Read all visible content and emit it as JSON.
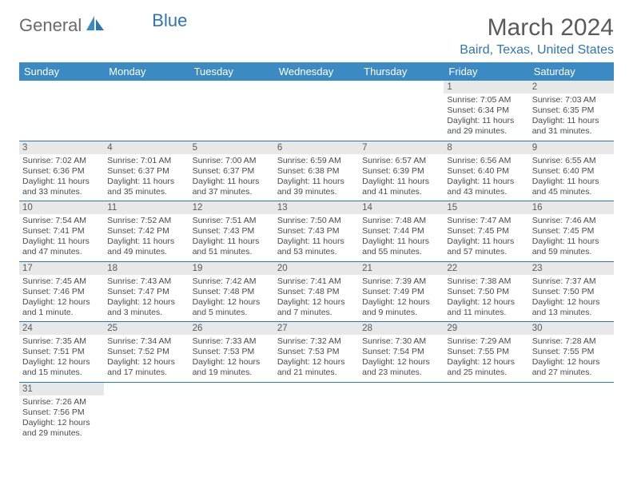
{
  "logo": {
    "text1": "General",
    "text2": "Blue"
  },
  "title": "March 2024",
  "location": "Baird, Texas, United States",
  "colors": {
    "header_bg": "#3b8ac4",
    "accent": "#2e75b6",
    "day_bg": "#e8e8e8",
    "text": "#404040",
    "title_text": "#5a5a5a"
  },
  "days_of_week": [
    "Sunday",
    "Monday",
    "Tuesday",
    "Wednesday",
    "Thursday",
    "Friday",
    "Saturday"
  ],
  "weeks": [
    [
      null,
      null,
      null,
      null,
      null,
      {
        "n": "1",
        "sr": "Sunrise: 7:05 AM",
        "ss": "Sunset: 6:34 PM",
        "d1": "Daylight: 11 hours",
        "d2": "and 29 minutes."
      },
      {
        "n": "2",
        "sr": "Sunrise: 7:03 AM",
        "ss": "Sunset: 6:35 PM",
        "d1": "Daylight: 11 hours",
        "d2": "and 31 minutes."
      }
    ],
    [
      {
        "n": "3",
        "sr": "Sunrise: 7:02 AM",
        "ss": "Sunset: 6:36 PM",
        "d1": "Daylight: 11 hours",
        "d2": "and 33 minutes."
      },
      {
        "n": "4",
        "sr": "Sunrise: 7:01 AM",
        "ss": "Sunset: 6:37 PM",
        "d1": "Daylight: 11 hours",
        "d2": "and 35 minutes."
      },
      {
        "n": "5",
        "sr": "Sunrise: 7:00 AM",
        "ss": "Sunset: 6:37 PM",
        "d1": "Daylight: 11 hours",
        "d2": "and 37 minutes."
      },
      {
        "n": "6",
        "sr": "Sunrise: 6:59 AM",
        "ss": "Sunset: 6:38 PM",
        "d1": "Daylight: 11 hours",
        "d2": "and 39 minutes."
      },
      {
        "n": "7",
        "sr": "Sunrise: 6:57 AM",
        "ss": "Sunset: 6:39 PM",
        "d1": "Daylight: 11 hours",
        "d2": "and 41 minutes."
      },
      {
        "n": "8",
        "sr": "Sunrise: 6:56 AM",
        "ss": "Sunset: 6:40 PM",
        "d1": "Daylight: 11 hours",
        "d2": "and 43 minutes."
      },
      {
        "n": "9",
        "sr": "Sunrise: 6:55 AM",
        "ss": "Sunset: 6:40 PM",
        "d1": "Daylight: 11 hours",
        "d2": "and 45 minutes."
      }
    ],
    [
      {
        "n": "10",
        "sr": "Sunrise: 7:54 AM",
        "ss": "Sunset: 7:41 PM",
        "d1": "Daylight: 11 hours",
        "d2": "and 47 minutes."
      },
      {
        "n": "11",
        "sr": "Sunrise: 7:52 AM",
        "ss": "Sunset: 7:42 PM",
        "d1": "Daylight: 11 hours",
        "d2": "and 49 minutes."
      },
      {
        "n": "12",
        "sr": "Sunrise: 7:51 AM",
        "ss": "Sunset: 7:43 PM",
        "d1": "Daylight: 11 hours",
        "d2": "and 51 minutes."
      },
      {
        "n": "13",
        "sr": "Sunrise: 7:50 AM",
        "ss": "Sunset: 7:43 PM",
        "d1": "Daylight: 11 hours",
        "d2": "and 53 minutes."
      },
      {
        "n": "14",
        "sr": "Sunrise: 7:48 AM",
        "ss": "Sunset: 7:44 PM",
        "d1": "Daylight: 11 hours",
        "d2": "and 55 minutes."
      },
      {
        "n": "15",
        "sr": "Sunrise: 7:47 AM",
        "ss": "Sunset: 7:45 PM",
        "d1": "Daylight: 11 hours",
        "d2": "and 57 minutes."
      },
      {
        "n": "16",
        "sr": "Sunrise: 7:46 AM",
        "ss": "Sunset: 7:45 PM",
        "d1": "Daylight: 11 hours",
        "d2": "and 59 minutes."
      }
    ],
    [
      {
        "n": "17",
        "sr": "Sunrise: 7:45 AM",
        "ss": "Sunset: 7:46 PM",
        "d1": "Daylight: 12 hours",
        "d2": "and 1 minute."
      },
      {
        "n": "18",
        "sr": "Sunrise: 7:43 AM",
        "ss": "Sunset: 7:47 PM",
        "d1": "Daylight: 12 hours",
        "d2": "and 3 minutes."
      },
      {
        "n": "19",
        "sr": "Sunrise: 7:42 AM",
        "ss": "Sunset: 7:48 PM",
        "d1": "Daylight: 12 hours",
        "d2": "and 5 minutes."
      },
      {
        "n": "20",
        "sr": "Sunrise: 7:41 AM",
        "ss": "Sunset: 7:48 PM",
        "d1": "Daylight: 12 hours",
        "d2": "and 7 minutes."
      },
      {
        "n": "21",
        "sr": "Sunrise: 7:39 AM",
        "ss": "Sunset: 7:49 PM",
        "d1": "Daylight: 12 hours",
        "d2": "and 9 minutes."
      },
      {
        "n": "22",
        "sr": "Sunrise: 7:38 AM",
        "ss": "Sunset: 7:50 PM",
        "d1": "Daylight: 12 hours",
        "d2": "and 11 minutes."
      },
      {
        "n": "23",
        "sr": "Sunrise: 7:37 AM",
        "ss": "Sunset: 7:50 PM",
        "d1": "Daylight: 12 hours",
        "d2": "and 13 minutes."
      }
    ],
    [
      {
        "n": "24",
        "sr": "Sunrise: 7:35 AM",
        "ss": "Sunset: 7:51 PM",
        "d1": "Daylight: 12 hours",
        "d2": "and 15 minutes."
      },
      {
        "n": "25",
        "sr": "Sunrise: 7:34 AM",
        "ss": "Sunset: 7:52 PM",
        "d1": "Daylight: 12 hours",
        "d2": "and 17 minutes."
      },
      {
        "n": "26",
        "sr": "Sunrise: 7:33 AM",
        "ss": "Sunset: 7:53 PM",
        "d1": "Daylight: 12 hours",
        "d2": "and 19 minutes."
      },
      {
        "n": "27",
        "sr": "Sunrise: 7:32 AM",
        "ss": "Sunset: 7:53 PM",
        "d1": "Daylight: 12 hours",
        "d2": "and 21 minutes."
      },
      {
        "n": "28",
        "sr": "Sunrise: 7:30 AM",
        "ss": "Sunset: 7:54 PM",
        "d1": "Daylight: 12 hours",
        "d2": "and 23 minutes."
      },
      {
        "n": "29",
        "sr": "Sunrise: 7:29 AM",
        "ss": "Sunset: 7:55 PM",
        "d1": "Daylight: 12 hours",
        "d2": "and 25 minutes."
      },
      {
        "n": "30",
        "sr": "Sunrise: 7:28 AM",
        "ss": "Sunset: 7:55 PM",
        "d1": "Daylight: 12 hours",
        "d2": "and 27 minutes."
      }
    ],
    [
      {
        "n": "31",
        "sr": "Sunrise: 7:26 AM",
        "ss": "Sunset: 7:56 PM",
        "d1": "Daylight: 12 hours",
        "d2": "and 29 minutes."
      },
      null,
      null,
      null,
      null,
      null,
      null
    ]
  ]
}
